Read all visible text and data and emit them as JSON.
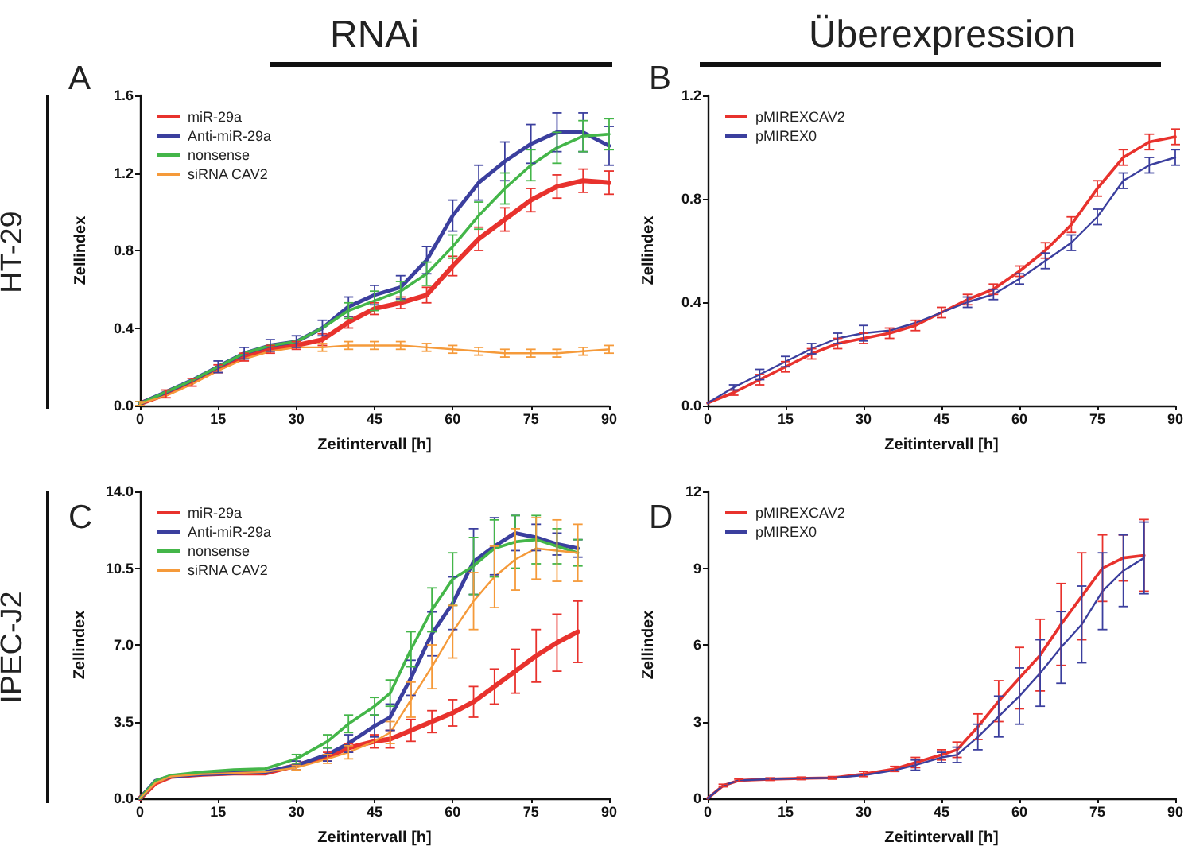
{
  "chart_data": [
    {
      "type": "line",
      "title": "A",
      "xlabel": "Zeitintervall [h]",
      "ylabel": "Zellindex",
      "annotations": [
        "RNAi",
        "HT-29"
      ],
      "legend": "top left",
      "grid": false,
      "marker": "none",
      "line_style": "solid",
      "xlim": [
        0,
        90
      ],
      "xticks": [
        0,
        15,
        30,
        45,
        60,
        75,
        90
      ],
      "ylim": [
        0,
        1.6
      ],
      "yticks": [
        {
          "value": 0,
          "label": "0.0"
        },
        0.4,
        0.8,
        1.2,
        1.6
      ],
      "x": [
        0,
        5,
        10,
        15,
        20,
        25,
        30,
        35,
        40,
        45,
        50,
        55,
        60,
        65,
        70,
        75,
        80,
        85,
        90
      ],
      "series": [
        {
          "name": "miR-29a",
          "color": "#e8322d",
          "values": [
            0.01,
            0.06,
            0.12,
            0.19,
            0.25,
            0.29,
            0.31,
            0.34,
            0.43,
            0.5,
            0.53,
            0.57,
            0.72,
            0.86,
            0.96,
            1.06,
            1.13,
            1.16,
            1.15
          ],
          "errors": [
            0.01,
            0.02,
            0.02,
            0.02,
            0.02,
            0.02,
            0.02,
            0.03,
            0.03,
            0.03,
            0.03,
            0.04,
            0.05,
            0.06,
            0.06,
            0.06,
            0.06,
            0.06,
            0.06
          ]
        },
        {
          "name": "Anti-miR-29a",
          "color": "#3b3f9e",
          "values": [
            0.01,
            0.07,
            0.13,
            0.2,
            0.27,
            0.31,
            0.33,
            0.4,
            0.51,
            0.57,
            0.61,
            0.75,
            0.98,
            1.15,
            1.26,
            1.35,
            1.41,
            1.41,
            1.34
          ],
          "errors": [
            0.01,
            null,
            null,
            0.03,
            0.03,
            0.03,
            0.03,
            0.04,
            0.05,
            0.05,
            0.06,
            0.07,
            0.08,
            0.09,
            0.1,
            0.1,
            0.1,
            0.1,
            0.1
          ]
        },
        {
          "name": "nonsense",
          "color": "#44b649",
          "values": [
            0.01,
            0.07,
            0.13,
            0.2,
            0.27,
            0.31,
            0.33,
            0.4,
            0.49,
            0.54,
            0.59,
            0.68,
            0.82,
            0.98,
            1.12,
            1.24,
            1.33,
            1.39,
            1.4
          ],
          "errors": [
            0.01,
            null,
            null,
            null,
            null,
            null,
            null,
            null,
            0.04,
            0.05,
            0.05,
            0.06,
            0.06,
            0.07,
            0.08,
            0.08,
            0.08,
            0.08,
            0.08
          ]
        },
        {
          "name": "siRNA CAV2",
          "color": "#f59a3a",
          "values": [
            0.01,
            0.05,
            0.11,
            0.18,
            0.24,
            0.28,
            0.3,
            0.3,
            0.31,
            0.31,
            0.31,
            0.3,
            0.29,
            0.28,
            0.27,
            0.27,
            0.27,
            0.28,
            0.29
          ],
          "errors": [
            0.01,
            null,
            null,
            null,
            null,
            null,
            null,
            0.02,
            0.02,
            0.02,
            0.02,
            0.02,
            0.02,
            0.02,
            0.02,
            0.02,
            0.02,
            0.02,
            0.02
          ]
        }
      ]
    },
    {
      "type": "line",
      "title": "B",
      "xlabel": "Zeitintervall [h]",
      "ylabel": "Zellindex",
      "annotations": [
        "Überexpression"
      ],
      "legend": "top left",
      "grid": false,
      "marker": "none",
      "line_style": "solid",
      "xlim": [
        0,
        90
      ],
      "xticks": [
        0,
        15,
        30,
        45,
        60,
        75,
        90
      ],
      "ylim": [
        0,
        1.2
      ],
      "yticks": [
        {
          "value": 0,
          "label": "0.0"
        },
        0.4,
        0.8,
        1.2
      ],
      "x": [
        0,
        5,
        10,
        15,
        20,
        25,
        30,
        35,
        40,
        45,
        50,
        55,
        60,
        65,
        70,
        75,
        80,
        85,
        90
      ],
      "series": [
        {
          "name": "pMIREXCAV2",
          "color": "#e8322d",
          "values": [
            0.01,
            0.05,
            0.1,
            0.15,
            0.2,
            0.24,
            0.26,
            0.28,
            0.31,
            0.36,
            0.41,
            0.45,
            0.52,
            0.6,
            0.7,
            0.84,
            0.96,
            1.02,
            1.04
          ],
          "errors": [
            null,
            0.01,
            0.02,
            0.02,
            0.02,
            0.02,
            0.02,
            0.02,
            0.02,
            0.02,
            0.02,
            0.02,
            0.02,
            0.03,
            0.03,
            0.03,
            0.03,
            0.03,
            0.03
          ]
        },
        {
          "name": "pMIREX0",
          "color": "#3b3f9e",
          "values": [
            0.01,
            0.07,
            0.12,
            0.17,
            0.22,
            0.26,
            0.28,
            0.29,
            0.32,
            0.36,
            0.4,
            0.43,
            0.49,
            0.56,
            0.63,
            0.73,
            0.87,
            0.93,
            0.96
          ],
          "errors": [
            null,
            0.01,
            0.02,
            0.02,
            0.02,
            0.02,
            0.03,
            null,
            null,
            null,
            0.02,
            0.02,
            0.02,
            0.03,
            0.03,
            0.03,
            0.03,
            0.03,
            0.03
          ]
        }
      ]
    },
    {
      "type": "line",
      "title": "C",
      "xlabel": "Zeitintervall [h]",
      "ylabel": "Zellindex",
      "annotations": [
        "IPEC-J2"
      ],
      "legend": "top left",
      "grid": false,
      "marker": "none",
      "line_style": "solid",
      "xlim": [
        0,
        90
      ],
      "xticks": [
        0,
        15,
        30,
        45,
        60,
        75,
        90
      ],
      "ylim": [
        0,
        14
      ],
      "yticks": [
        {
          "value": 0,
          "label": "0.0"
        },
        3.5,
        {
          "value": 7,
          "label": "7.0"
        },
        10.5,
        {
          "value": 14,
          "label": "14.0"
        }
      ],
      "x": [
        0,
        3,
        6,
        12,
        18,
        24,
        30,
        36,
        40,
        45,
        48,
        52,
        56,
        60,
        64,
        68,
        72,
        76,
        80,
        84
      ],
      "series": [
        {
          "name": "miR-29a",
          "color": "#e8322d",
          "values": [
            0,
            0.7,
            1,
            1.1,
            1.15,
            1.15,
            1.5,
            1.9,
            2.3,
            2.6,
            2.7,
            3.1,
            3.5,
            3.9,
            4.4,
            5.1,
            5.8,
            6.5,
            7.1,
            7.6
          ],
          "errors": [
            null,
            null,
            null,
            null,
            null,
            null,
            null,
            0.2,
            0.2,
            0.3,
            0.4,
            0.5,
            0.5,
            0.6,
            0.7,
            0.8,
            1,
            1.2,
            1.3,
            1.4
          ]
        },
        {
          "name": "Anti-miR-29a",
          "color": "#3b3f9e",
          "values": [
            0,
            0.8,
            1,
            1.1,
            1.15,
            1.2,
            1.5,
            2,
            2.5,
            3.3,
            3.7,
            5.5,
            7.5,
            8.9,
            10.8,
            11.5,
            12.1,
            11.9,
            11.6,
            11.4
          ],
          "errors": [
            null,
            null,
            null,
            null,
            null,
            null,
            0.2,
            0.3,
            0.4,
            0.5,
            0.6,
            0.8,
            1,
            1.2,
            1.5,
            1.3,
            0.8,
            0.6,
            0.5,
            0.4
          ]
        },
        {
          "name": "nonsense",
          "color": "#44b649",
          "values": [
            0,
            0.8,
            1.05,
            1.2,
            1.3,
            1.35,
            1.8,
            2.6,
            3.4,
            4.2,
            4.8,
            6.8,
            8.6,
            10,
            10.6,
            11.4,
            11.7,
            11.8,
            11.5,
            11.2
          ],
          "errors": [
            null,
            null,
            null,
            null,
            null,
            null,
            0.2,
            0.3,
            0.4,
            0.4,
            0.6,
            0.8,
            1,
            1.2,
            1.3,
            1.3,
            1.2,
            1.1,
            0.8,
            0.6
          ]
        },
        {
          "name": "siRNA CAV2",
          "color": "#f59a3a",
          "values": [
            0,
            0.7,
            1,
            1.1,
            1.15,
            1.2,
            1.4,
            1.8,
            2.1,
            2.6,
            3,
            4.5,
            6,
            7.6,
            9,
            10.1,
            10.9,
            11.4,
            11.3,
            11.2
          ],
          "errors": [
            null,
            null,
            null,
            null,
            null,
            null,
            0.1,
            0.2,
            0.3,
            null,
            0.5,
            0.8,
            1,
            1.2,
            1.3,
            1.4,
            1.4,
            1.4,
            1.4,
            1.3
          ]
        }
      ]
    },
    {
      "type": "line",
      "title": "D",
      "xlabel": "Zeitintervall [h]",
      "ylabel": "Zellindex",
      "legend": "top left",
      "grid": false,
      "marker": "none",
      "line_style": "solid",
      "xlim": [
        0,
        90
      ],
      "xticks": [
        0,
        15,
        30,
        45,
        60,
        75,
        90
      ],
      "ylim": [
        0,
        12
      ],
      "yticks": [
        0,
        3,
        6,
        9,
        12
      ],
      "x": [
        0,
        3,
        6,
        12,
        18,
        24,
        30,
        36,
        40,
        45,
        48,
        52,
        56,
        60,
        64,
        68,
        72,
        76,
        80,
        84
      ],
      "series": [
        {
          "name": "pMIREXCAV2",
          "color": "#e8322d",
          "values": [
            0,
            0.5,
            0.7,
            0.75,
            0.78,
            0.8,
            0.95,
            1.15,
            1.4,
            1.7,
            1.9,
            2.8,
            3.8,
            4.7,
            5.6,
            6.8,
            7.9,
            9,
            9.4,
            9.5
          ],
          "errors": [
            null,
            0.05,
            0.05,
            0.05,
            0.05,
            0.05,
            0.1,
            0.1,
            0.2,
            0.2,
            0.3,
            0.5,
            0.8,
            1.2,
            1.4,
            1.6,
            1.7,
            1.3,
            0.9,
            1.4
          ]
        },
        {
          "name": "pMIREX0",
          "color": "#3b3f9e",
          "values": [
            0,
            0.5,
            0.7,
            0.75,
            0.78,
            0.8,
            0.9,
            1.1,
            1.3,
            1.6,
            1.7,
            2.4,
            3.2,
            4,
            4.9,
            5.9,
            6.8,
            8.1,
            8.9,
            9.4
          ],
          "errors": [
            null,
            null,
            null,
            null,
            null,
            null,
            null,
            null,
            0.2,
            0.2,
            0.3,
            0.5,
            0.8,
            1.1,
            1.3,
            1.4,
            1.5,
            1.5,
            1.4,
            1.4
          ]
        }
      ]
    }
  ]
}
